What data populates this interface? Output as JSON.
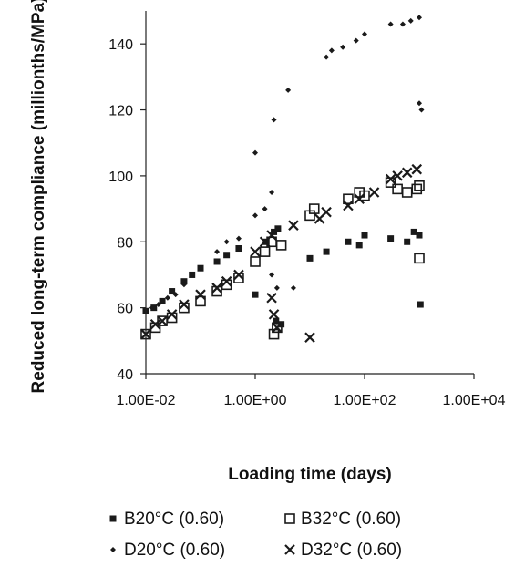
{
  "chart_data": {
    "type": "scatter",
    "xscale": "log",
    "xlabel": "Loading time (days)",
    "ylabel": "Reduced long-term compliance (millionths/MPa)",
    "xlim": [
      0.01,
      10000
    ],
    "ylim": [
      40,
      150
    ],
    "grid": false,
    "legend_position": "bottom",
    "x_ticks": [
      {
        "value": 0.01,
        "label": "1.00E-02"
      },
      {
        "value": 1,
        "label": "1.00E+00"
      },
      {
        "value": 100,
        "label": "1.00E+02"
      },
      {
        "value": 10000,
        "label": "1.00E+04"
      }
    ],
    "y_ticks": [
      {
        "value": 40,
        "label": "40"
      },
      {
        "value": 60,
        "label": "60"
      },
      {
        "value": 80,
        "label": "80"
      },
      {
        "value": 100,
        "label": "100"
      },
      {
        "value": 120,
        "label": "120"
      },
      {
        "value": 140,
        "label": "140"
      }
    ],
    "series": [
      {
        "name": "B20°C (0.60)",
        "marker": "filled-square",
        "points": [
          [
            0.01,
            59
          ],
          [
            0.014,
            60
          ],
          [
            0.02,
            62
          ],
          [
            0.03,
            65
          ],
          [
            0.05,
            68
          ],
          [
            0.07,
            70
          ],
          [
            0.1,
            72
          ],
          [
            0.2,
            74
          ],
          [
            0.3,
            76
          ],
          [
            0.5,
            78
          ],
          [
            1.0,
            64
          ],
          [
            1.6,
            80
          ],
          [
            2.2,
            83
          ],
          [
            2.6,
            84
          ],
          [
            3.0,
            55
          ],
          [
            2.4,
            56
          ],
          [
            10,
            75
          ],
          [
            20,
            77
          ],
          [
            50,
            80
          ],
          [
            80,
            79
          ],
          [
            100,
            82
          ],
          [
            300,
            81
          ],
          [
            600,
            80
          ],
          [
            800,
            83
          ],
          [
            1000,
            82
          ],
          [
            1050,
            61
          ]
        ]
      },
      {
        "name": "B32°C (0.60)",
        "marker": "open-square",
        "points": [
          [
            0.01,
            52
          ],
          [
            0.015,
            54
          ],
          [
            0.02,
            56
          ],
          [
            0.03,
            57
          ],
          [
            0.05,
            60
          ],
          [
            0.1,
            62
          ],
          [
            0.2,
            65
          ],
          [
            0.3,
            67
          ],
          [
            0.5,
            69
          ],
          [
            1.0,
            74
          ],
          [
            1.5,
            77
          ],
          [
            2.0,
            80
          ],
          [
            2.2,
            52
          ],
          [
            2.5,
            54
          ],
          [
            3.0,
            79
          ],
          [
            10,
            88
          ],
          [
            12,
            90
          ],
          [
            50,
            93
          ],
          [
            80,
            95
          ],
          [
            100,
            94
          ],
          [
            300,
            98
          ],
          [
            400,
            96
          ],
          [
            600,
            95
          ],
          [
            900,
            96
          ],
          [
            1000,
            97
          ],
          [
            1000,
            75
          ]
        ]
      },
      {
        "name": "D20°C (0.60)",
        "marker": "small-diamond",
        "points": [
          [
            0.01,
            59
          ],
          [
            0.013,
            60
          ],
          [
            0.017,
            61
          ],
          [
            0.025,
            63
          ],
          [
            0.035,
            64
          ],
          [
            0.05,
            67
          ],
          [
            0.07,
            70
          ],
          [
            0.1,
            72
          ],
          [
            0.2,
            77
          ],
          [
            0.3,
            80
          ],
          [
            0.5,
            81
          ],
          [
            1.0,
            107
          ],
          [
            1.0,
            88
          ],
          [
            1.5,
            90
          ],
          [
            2.0,
            95
          ],
          [
            2.2,
            117
          ],
          [
            4.0,
            126
          ],
          [
            20,
            136
          ],
          [
            25,
            138
          ],
          [
            40,
            139
          ],
          [
            70,
            141
          ],
          [
            100,
            143
          ],
          [
            300,
            146
          ],
          [
            500,
            146
          ],
          [
            700,
            147
          ],
          [
            1000,
            148
          ],
          [
            1000,
            122
          ],
          [
            1100,
            120
          ],
          [
            2.5,
            66
          ],
          [
            2.0,
            70
          ],
          [
            5.0,
            66
          ]
        ]
      },
      {
        "name": "D32°C (0.60)",
        "marker": "cross",
        "points": [
          [
            0.01,
            52
          ],
          [
            0.015,
            55
          ],
          [
            0.02,
            56
          ],
          [
            0.03,
            58
          ],
          [
            0.05,
            61
          ],
          [
            0.1,
            64
          ],
          [
            0.2,
            66
          ],
          [
            0.3,
            68
          ],
          [
            0.5,
            70
          ],
          [
            1.0,
            77
          ],
          [
            1.5,
            80
          ],
          [
            2.0,
            82
          ],
          [
            2.0,
            63
          ],
          [
            2.2,
            58
          ],
          [
            2.5,
            54
          ],
          [
            10,
            51
          ],
          [
            5.0,
            85
          ],
          [
            15,
            87
          ],
          [
            20,
            89
          ],
          [
            50,
            91
          ],
          [
            80,
            93
          ],
          [
            150,
            95
          ],
          [
            300,
            99
          ],
          [
            400,
            100
          ],
          [
            600,
            101
          ],
          [
            900,
            102
          ]
        ]
      }
    ]
  }
}
